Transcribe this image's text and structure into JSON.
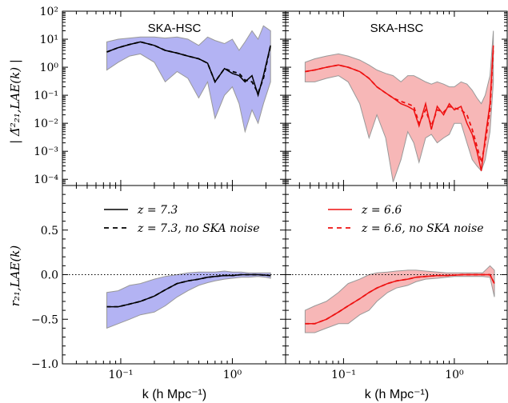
{
  "figure": {
    "shared_xlabel": "k (h Mpc⁻¹)",
    "top_ylabel": "| Δ̃²₂₁,LAE(k) |",
    "bottom_ylabel": "r₂₁,LAE(k)",
    "panel_titles": [
      "SKA-HSC",
      "SKA-HSC"
    ],
    "legend_left": [
      "z = 7.3",
      "z = 7.3, no SKA noise"
    ],
    "legend_right": [
      "z = 6.6",
      "z = 6.6, no SKA noise"
    ],
    "colors": {
      "left": "#000000",
      "right": "#ee1111",
      "band_left": "#b3b3f3",
      "band_right": "#f7b7b7",
      "band_edge": "#999999"
    }
  },
  "chart_data": [
    {
      "type": "line",
      "panel": "top-left",
      "title": "SKA-HSC",
      "xlabel": "k (h Mpc⁻¹)",
      "ylabel": "| Δ̃²₂₁,LAE(k) |",
      "xscale": "log",
      "yscale": "log",
      "xlim": [
        0.03,
        3.0
      ],
      "ylim": [
        6e-05,
        100
      ],
      "x_tick_labels": [
        "10⁻¹",
        "10⁰"
      ],
      "y_tick_labels": [
        "10²",
        "10¹",
        "10⁰",
        "10⁻¹",
        "10⁻²",
        "10⁻³",
        "10⁻⁴"
      ],
      "series": [
        {
          "name": "z = 7.3",
          "style": "solid",
          "color": "#000000",
          "x": [
            0.075,
            0.095,
            0.12,
            0.15,
            0.2,
            0.25,
            0.32,
            0.4,
            0.5,
            0.6,
            0.7,
            0.85,
            1.0,
            1.15,
            1.3,
            1.5,
            1.7,
            1.9,
            2.2
          ],
          "y": [
            3.5,
            5,
            6.5,
            8,
            6,
            4,
            3.2,
            2.5,
            2,
            1.4,
            0.3,
            0.9,
            0.6,
            0.5,
            0.3,
            0.5,
            0.1,
            0.5,
            6
          ]
        },
        {
          "name": "z = 7.3, no SKA noise",
          "style": "dashed",
          "color": "#000000",
          "x": [
            0.075,
            0.095,
            0.12,
            0.15,
            0.2,
            0.25,
            0.32,
            0.4,
            0.5,
            0.6,
            0.7,
            0.85,
            1.0,
            1.15,
            1.3,
            1.5,
            1.7,
            1.9,
            2.2
          ],
          "y": [
            3.5,
            5,
            6.5,
            8,
            6,
            4,
            3.2,
            2.5,
            2,
            1.4,
            0.3,
            0.9,
            0.7,
            0.6,
            0.35,
            0.3,
            0.12,
            0.4,
            6
          ]
        }
      ],
      "band": {
        "x": [
          0.075,
          0.095,
          0.12,
          0.15,
          0.2,
          0.25,
          0.32,
          0.4,
          0.5,
          0.6,
          0.7,
          0.85,
          1.0,
          1.15,
          1.3,
          1.5,
          1.7,
          1.9,
          2.2
        ],
        "upper": [
          8,
          10,
          11,
          12,
          12,
          11,
          12,
          10,
          6,
          12,
          9,
          7,
          10,
          4,
          8,
          20,
          10,
          30,
          20
        ],
        "lower": [
          0.8,
          1.5,
          2.5,
          3,
          1.5,
          0.3,
          0.7,
          0.4,
          0.08,
          0.3,
          0.015,
          0.1,
          0.2,
          0.05,
          0.005,
          0.03,
          0.01,
          0.05,
          0.3
        ]
      }
    },
    {
      "type": "line",
      "panel": "top-right",
      "title": "SKA-HSC",
      "xscale": "log",
      "yscale": "log",
      "xlim": [
        0.03,
        3.0
      ],
      "ylim": [
        6e-05,
        100
      ],
      "x_tick_labels": [
        "10⁻¹",
        "10⁰"
      ],
      "series": [
        {
          "name": "z = 6.6",
          "style": "solid",
          "color": "#ee1111",
          "x": [
            0.045,
            0.055,
            0.07,
            0.09,
            0.11,
            0.14,
            0.17,
            0.2,
            0.24,
            0.28,
            0.33,
            0.38,
            0.43,
            0.48,
            0.55,
            0.62,
            0.7,
            0.8,
            0.9,
            1.0,
            1.15,
            1.3,
            1.45,
            1.6,
            1.75,
            1.9,
            2.1,
            2.25
          ],
          "y": [
            0.7,
            0.8,
            1.0,
            1.2,
            1.0,
            0.7,
            0.4,
            0.2,
            0.12,
            0.08,
            0.05,
            0.04,
            0.03,
            0.008,
            0.05,
            0.006,
            0.04,
            0.02,
            0.05,
            0.03,
            0.04,
            0.01,
            0.004,
            0.001,
            0.0002,
            0.003,
            0.05,
            6
          ]
        },
        {
          "name": "z = 6.6, no SKA noise",
          "style": "dashed",
          "color": "#ee1111",
          "x": [
            0.045,
            0.055,
            0.07,
            0.09,
            0.11,
            0.14,
            0.17,
            0.2,
            0.24,
            0.28,
            0.33,
            0.38,
            0.43,
            0.48,
            0.55,
            0.62,
            0.7,
            0.8,
            0.9,
            1.0,
            1.15,
            1.3,
            1.45,
            1.6,
            1.75,
            1.9,
            2.1,
            2.25
          ],
          "y": [
            0.7,
            0.8,
            1.0,
            1.2,
            1.0,
            0.7,
            0.4,
            0.2,
            0.12,
            0.08,
            0.06,
            0.05,
            0.04,
            0.01,
            0.03,
            0.008,
            0.03,
            0.025,
            0.04,
            0.035,
            0.03,
            0.02,
            0.006,
            0.0015,
            0.0004,
            0.002,
            0.03,
            5
          ]
        }
      ],
      "band": {
        "x": [
          0.045,
          0.055,
          0.07,
          0.09,
          0.11,
          0.14,
          0.17,
          0.2,
          0.24,
          0.28,
          0.33,
          0.38,
          0.43,
          0.48,
          0.55,
          0.62,
          0.7,
          0.8,
          0.9,
          1.0,
          1.15,
          1.3,
          1.45,
          1.6,
          1.75,
          1.9,
          2.1,
          2.25
        ],
        "upper": [
          1.5,
          2,
          2.5,
          3,
          2.5,
          1.8,
          1.2,
          0.8,
          0.6,
          0.5,
          0.3,
          0.5,
          0.5,
          0.4,
          0.3,
          0.25,
          0.3,
          0.25,
          0.2,
          0.2,
          0.3,
          0.25,
          0.15,
          0.08,
          0.05,
          0.1,
          0.5,
          20
        ],
        "lower": [
          0.3,
          0.3,
          0.4,
          0.5,
          0.3,
          0.05,
          0.003,
          0.02,
          0.003,
          8e-05,
          0.0005,
          0.005,
          0.002,
          0.0004,
          0.003,
          0.004,
          0.002,
          0.003,
          0.004,
          0.01,
          0.01,
          0.002,
          0.0005,
          0.0003,
          0.0002,
          0.0005,
          0.005,
          0.3
        ]
      }
    },
    {
      "type": "line",
      "panel": "bottom-left",
      "xlabel": "k (h Mpc⁻¹)",
      "ylabel": "r₂₁,LAE(k)",
      "xscale": "log",
      "xlim": [
        0.03,
        3.0
      ],
      "ylim": [
        -1.0,
        1.0
      ],
      "x_tick_labels": [
        "10⁻¹",
        "10⁰"
      ],
      "y_tick_labels": [
        "0.5",
        "0.0",
        "−0.5",
        "−1.0"
      ],
      "series": [
        {
          "name": "z = 7.3",
          "style": "solid",
          "color": "#000000",
          "x": [
            0.075,
            0.095,
            0.12,
            0.15,
            0.2,
            0.25,
            0.32,
            0.4,
            0.5,
            0.6,
            0.7,
            0.85,
            1.0,
            1.2,
            1.4,
            1.7,
            2.0,
            2.2
          ],
          "y": [
            -0.36,
            -0.36,
            -0.33,
            -0.3,
            -0.24,
            -0.17,
            -0.1,
            -0.07,
            -0.05,
            -0.03,
            -0.02,
            -0.01,
            -0.01,
            0.0,
            0.0,
            0.0,
            -0.005,
            -0.01
          ]
        },
        {
          "name": "z = 7.3, no SKA noise",
          "style": "dashed",
          "color": "#000000",
          "x": [
            0.075,
            0.095,
            0.12,
            0.15,
            0.2,
            0.25,
            0.32,
            0.4,
            0.5,
            0.6,
            0.7,
            0.85,
            1.0,
            1.2,
            1.4,
            1.7,
            2.0,
            2.2
          ],
          "y": [
            -0.36,
            -0.36,
            -0.33,
            -0.3,
            -0.24,
            -0.17,
            -0.1,
            -0.07,
            -0.05,
            -0.03,
            -0.02,
            -0.01,
            -0.01,
            0.0,
            0.0,
            0.0,
            -0.005,
            -0.01
          ]
        }
      ],
      "band": {
        "x": [
          0.075,
          0.095,
          0.12,
          0.15,
          0.2,
          0.25,
          0.32,
          0.4,
          0.5,
          0.6,
          0.7,
          0.85,
          1.0,
          1.2,
          1.4,
          1.7,
          2.0,
          2.2
        ],
        "upper": [
          -0.2,
          -0.18,
          -0.12,
          -0.1,
          -0.05,
          -0.02,
          0.0,
          0.02,
          0.03,
          0.03,
          0.03,
          0.04,
          0.03,
          0.03,
          0.02,
          0.02,
          0.02,
          0.02
        ],
        "lower": [
          -0.6,
          -0.55,
          -0.5,
          -0.45,
          -0.42,
          -0.35,
          -0.25,
          -0.18,
          -0.12,
          -0.09,
          -0.07,
          -0.05,
          -0.04,
          -0.03,
          -0.03,
          -0.02,
          -0.03,
          -0.04
        ]
      }
    },
    {
      "type": "line",
      "panel": "bottom-right",
      "xlabel": "k (h Mpc⁻¹)",
      "xscale": "log",
      "xlim": [
        0.03,
        3.0
      ],
      "ylim": [
        -1.0,
        1.0
      ],
      "x_tick_labels": [
        "10⁻¹",
        "10⁰"
      ],
      "series": [
        {
          "name": "z = 6.6",
          "style": "solid",
          "color": "#ee1111",
          "x": [
            0.045,
            0.055,
            0.07,
            0.09,
            0.11,
            0.14,
            0.17,
            0.2,
            0.25,
            0.3,
            0.38,
            0.45,
            0.55,
            0.7,
            0.85,
            1.0,
            1.2,
            1.5,
            1.8,
            2.1,
            2.3
          ],
          "y": [
            -0.55,
            -0.55,
            -0.5,
            -0.42,
            -0.35,
            -0.27,
            -0.2,
            -0.15,
            -0.1,
            -0.07,
            -0.05,
            -0.03,
            -0.02,
            -0.01,
            -0.01,
            -0.005,
            0.0,
            0.0,
            0.0,
            0.0,
            -0.1
          ]
        },
        {
          "name": "z = 6.6, no SKA noise",
          "style": "dashed",
          "color": "#ee1111",
          "x": [
            0.045,
            0.055,
            0.07,
            0.09,
            0.11,
            0.14,
            0.17,
            0.2,
            0.25,
            0.3,
            0.38,
            0.45,
            0.55,
            0.7,
            0.85,
            1.0,
            1.2,
            1.5,
            1.8,
            2.1,
            2.3
          ],
          "y": [
            -0.55,
            -0.55,
            -0.5,
            -0.42,
            -0.35,
            -0.27,
            -0.2,
            -0.15,
            -0.1,
            -0.07,
            -0.05,
            -0.03,
            -0.02,
            -0.01,
            -0.01,
            -0.005,
            0.0,
            0.0,
            0.0,
            0.0,
            -0.1
          ]
        }
      ],
      "band": {
        "x": [
          0.045,
          0.055,
          0.07,
          0.09,
          0.11,
          0.14,
          0.17,
          0.2,
          0.25,
          0.3,
          0.38,
          0.45,
          0.55,
          0.7,
          0.85,
          1.0,
          1.2,
          1.5,
          1.8,
          2.1,
          2.3
        ],
        "upper": [
          -0.4,
          -0.35,
          -0.3,
          -0.2,
          -0.1,
          -0.05,
          0.0,
          0.02,
          0.03,
          0.04,
          0.05,
          0.05,
          0.04,
          0.03,
          0.02,
          0.02,
          0.02,
          0.02,
          0.02,
          0.1,
          0.05
        ],
        "lower": [
          -0.65,
          -0.65,
          -0.6,
          -0.55,
          -0.55,
          -0.45,
          -0.4,
          -0.3,
          -0.2,
          -0.15,
          -0.12,
          -0.08,
          -0.05,
          -0.04,
          -0.03,
          -0.02,
          -0.02,
          -0.02,
          -0.02,
          -0.03,
          -0.25
        ]
      }
    }
  ]
}
